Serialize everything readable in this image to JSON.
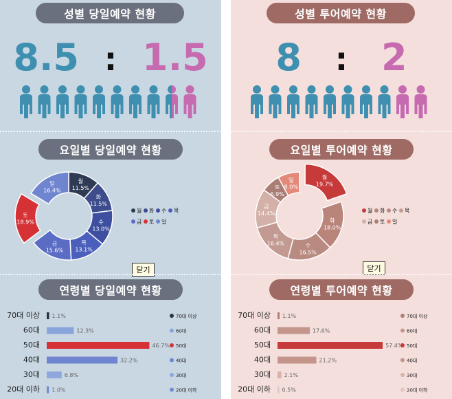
{
  "left": {
    "gender_title": "성별 당일예약 현황",
    "ratio": {
      "male": "8.5",
      "sep": ":",
      "female": "1.5",
      "male_people": 8.5,
      "female_people": 1.5
    },
    "weekday_title": "요일별 당일예약 현황",
    "close_label": "닫기",
    "age_title": "연령별 당일예약 현황",
    "colors": {
      "male": "#3e8fb0",
      "female": "#c66bb0"
    }
  },
  "right": {
    "gender_title": "성별 투어예약 현황",
    "ratio": {
      "male": "8",
      "sep": ":",
      "female": "2",
      "male_people": 8,
      "female_people": 2
    },
    "weekday_title": "요일별 투어예약 현황",
    "close_label": "닫기",
    "age_title": "연령별 투어예약 현황",
    "colors": {
      "male": "#3e8fb0",
      "female": "#c66bb0"
    }
  },
  "chart_data": [
    {
      "type": "pie",
      "title": "요일별 당일예약 현황",
      "categories": [
        "월",
        "화",
        "수",
        "목",
        "금",
        "토",
        "일"
      ],
      "values": [
        11.5,
        11.5,
        13.0,
        13.1,
        15.6,
        18.9,
        16.4
      ],
      "labels": [
        "11.5%",
        "11.5%",
        "13.0%",
        "13.1%",
        "15.6%",
        "18.9%",
        "16.4%"
      ],
      "colors": [
        "#2f3a55",
        "#3c4c8c",
        "#3e4fa0",
        "#4a5fbb",
        "#5a6cc4",
        "#d63236",
        "#6f85cf"
      ],
      "legend": [
        "월",
        "화",
        "수",
        "목",
        "금",
        "토",
        "일"
      ],
      "legend_placement": "right",
      "exploded": "토"
    },
    {
      "type": "pie",
      "title": "요일별 투어예약 현황",
      "categories": [
        "월",
        "화",
        "수",
        "목",
        "금",
        "토",
        "일"
      ],
      "values": [
        19.7,
        18.0,
        16.5,
        16.4,
        14.4,
        6.9,
        8.0
      ],
      "labels": [
        "19.7%",
        "18.0%",
        "16.5%",
        "16.4%",
        "14.4%",
        "6.9%",
        "8.0%"
      ],
      "colors": [
        "#c63a3a",
        "#b9847a",
        "#b98a80",
        "#c29a92",
        "#d3b0a8",
        "#a97d73",
        "#e3897a"
      ],
      "legend": [
        "월",
        "화",
        "수",
        "목",
        "금",
        "토",
        "일"
      ],
      "legend_placement": "right",
      "exploded": "월"
    },
    {
      "type": "bar",
      "title": "연령별 당일예약 현황",
      "categories": [
        "70대 이상",
        "60대",
        "50대",
        "40대",
        "30대",
        "20대 이하"
      ],
      "values": [
        1.1,
        12.3,
        46.7,
        32.2,
        6.8,
        1.0
      ],
      "labels": [
        "1.1%",
        "12.3%",
        "46.7%",
        "32.2%",
        "6.8%",
        "1.0%"
      ],
      "colors": [
        "#2d3140",
        "#8aa5dc",
        "#d63236",
        "#6f85cf",
        "#8fa7dc",
        "#6f8ecf"
      ],
      "legend": [
        "70대 이상",
        "60대",
        "50대",
        "40대",
        "30대",
        "20대 이하"
      ],
      "legend_placement": "right",
      "xlim": [
        0,
        50
      ]
    },
    {
      "type": "bar",
      "title": "연령별 투어예약 현황",
      "categories": [
        "70대 이상",
        "60대",
        "50대",
        "40대",
        "30대",
        "20대 이하"
      ],
      "values": [
        1.1,
        17.6,
        57.4,
        21.2,
        2.1,
        0.5
      ],
      "labels": [
        "1.1%",
        "17.6%",
        "57.4%",
        "21.2%",
        "2.1%",
        "0.5%"
      ],
      "colors": [
        "#b07e76",
        "#c4958a",
        "#c63a3a",
        "#c4958a",
        "#d7b3ab",
        "#e2c6bf"
      ],
      "legend": [
        "70대 이상",
        "60대",
        "50대",
        "40대",
        "30대",
        "20대 이하"
      ],
      "legend_placement": "right",
      "xlim": [
        0,
        60
      ]
    }
  ]
}
